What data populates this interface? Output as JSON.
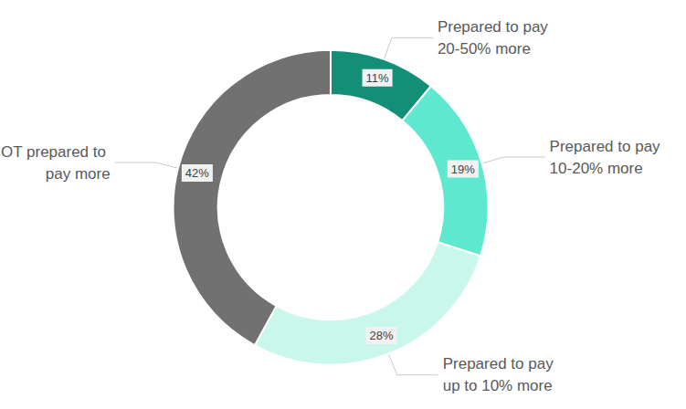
{
  "chart_data": {
    "type": "pie",
    "categories": [
      "Prepared to pay 20-50% more",
      "Prepared to pay 10-20% more",
      "Prepared to pay up to 10% more",
      "NOT prepared to pay more"
    ],
    "values": [
      11,
      19,
      28,
      42
    ],
    "value_labels": [
      "11%",
      "19%",
      "28%",
      "42%"
    ],
    "colors": [
      "#148f77",
      "#5ee8cf",
      "#c9f7ec",
      "#717171"
    ],
    "data_labels": true
  }
}
